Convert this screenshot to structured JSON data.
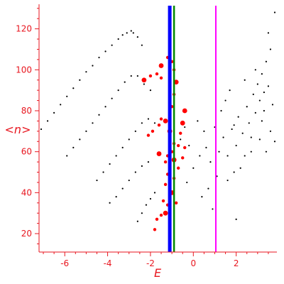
{
  "chart_data": {
    "type": "scatter",
    "xlabel": "E",
    "ylabel": "<n>",
    "xlim": [
      -7.2,
      3.9
    ],
    "ylim": [
      11,
      132
    ],
    "xticks": [
      -6,
      -4,
      -2,
      0,
      2
    ],
    "yticks": [
      20,
      40,
      60,
      80,
      100,
      120
    ],
    "grid": false,
    "legend": "none",
    "colors": {
      "axis": "#e8161f",
      "black_points": "#000000",
      "red_points": "#ff0000",
      "line_blue": "#0000ff",
      "line_green": "#008800",
      "line_magenta": "#ff00ff"
    },
    "vertical_lines": [
      {
        "x": -1.1,
        "color": "#0000ff"
      },
      {
        "x": -0.9,
        "color": "#008800"
      },
      {
        "x": 1.05,
        "color": "#ff00ff"
      }
    ],
    "series": [
      {
        "points": [
          [
            -7.1,
            71
          ],
          [
            -6.8,
            75
          ],
          [
            -6.5,
            79
          ],
          [
            -6.2,
            83
          ],
          [
            -5.9,
            87
          ],
          [
            -5.6,
            91
          ],
          [
            -5.3,
            95
          ],
          [
            -5.0,
            99
          ],
          [
            -4.7,
            102
          ],
          [
            -4.4,
            106
          ],
          [
            -4.1,
            109
          ],
          [
            -3.8,
            112
          ],
          [
            -3.5,
            115
          ],
          [
            -3.3,
            117
          ],
          [
            -3.1,
            118
          ],
          [
            -2.9,
            119
          ],
          [
            -2.8,
            118
          ],
          [
            -2.6,
            116
          ],
          [
            -2.4,
            112
          ],
          [
            -5.9,
            58
          ],
          [
            -5.6,
            62
          ],
          [
            -5.3,
            66
          ],
          [
            -5.0,
            70
          ],
          [
            -4.7,
            74
          ],
          [
            -4.4,
            78
          ],
          [
            -4.1,
            82
          ],
          [
            -3.8,
            86
          ],
          [
            -3.5,
            90
          ],
          [
            -3.2,
            94
          ],
          [
            -2.9,
            97
          ],
          [
            -2.6,
            97
          ],
          [
            -2.3,
            93
          ],
          [
            -2.0,
            90
          ],
          [
            -4.5,
            46
          ],
          [
            -4.2,
            50
          ],
          [
            -3.9,
            54
          ],
          [
            -3.6,
            58
          ],
          [
            -3.3,
            62
          ],
          [
            -3.0,
            66
          ],
          [
            -2.7,
            70
          ],
          [
            -2.4,
            74
          ],
          [
            -2.1,
            76
          ],
          [
            -1.8,
            74
          ],
          [
            -3.9,
            35
          ],
          [
            -3.6,
            38
          ],
          [
            -3.3,
            42
          ],
          [
            -3.0,
            46
          ],
          [
            -2.7,
            50
          ],
          [
            -2.4,
            53
          ],
          [
            -2.1,
            55
          ],
          [
            -2.6,
            26
          ],
          [
            -2.4,
            30
          ],
          [
            -2.2,
            34
          ],
          [
            -2.0,
            37
          ],
          [
            -1.8,
            40
          ],
          [
            -0.6,
            66
          ],
          [
            -0.2,
            63
          ],
          [
            0.3,
            58
          ],
          [
            0.6,
            62
          ],
          [
            0.8,
            55
          ],
          [
            1.2,
            60
          ],
          [
            1.4,
            67
          ],
          [
            1.6,
            58
          ],
          [
            1.8,
            71
          ],
          [
            2.0,
            63
          ],
          [
            2.1,
            77
          ],
          [
            2.3,
            69
          ],
          [
            2.5,
            82
          ],
          [
            2.6,
            74
          ],
          [
            2.8,
            88
          ],
          [
            2.9,
            79
          ],
          [
            3.0,
            93
          ],
          [
            3.1,
            85
          ],
          [
            3.2,
            98
          ],
          [
            3.3,
            89
          ],
          [
            3.4,
            104
          ],
          [
            3.5,
            92
          ],
          [
            3.6,
            110
          ],
          [
            3.7,
            83
          ],
          [
            3.8,
            128
          ],
          [
            3.5,
            118
          ],
          [
            3.2,
            75
          ],
          [
            2.7,
            60
          ],
          [
            2.2,
            52
          ],
          [
            1.9,
            50
          ],
          [
            1.1,
            48
          ],
          [
            0.7,
            42
          ],
          [
            0.4,
            38
          ],
          [
            0.9,
            32
          ],
          [
            2.0,
            27
          ],
          [
            -0.3,
            45
          ],
          [
            0.0,
            52
          ],
          [
            0.5,
            70
          ],
          [
            1.0,
            72
          ],
          [
            1.3,
            80
          ],
          [
            1.5,
            85
          ],
          [
            1.7,
            90
          ],
          [
            2.4,
            95
          ],
          [
            2.9,
            100
          ],
          [
            3.3,
            80
          ],
          [
            3.6,
            70
          ],
          [
            3.8,
            65
          ],
          [
            3.1,
            66
          ],
          [
            2.4,
            58
          ],
          [
            1.6,
            46
          ],
          [
            0.2,
            75
          ],
          [
            -0.4,
            72
          ],
          [
            1.9,
            73
          ],
          [
            2.7,
            67
          ],
          [
            3.4,
            60
          ]
        ]
      },
      {
        "points": [
          [
            -1.5,
            102
          ],
          [
            -1.2,
            106
          ],
          [
            -1.0,
            104
          ],
          [
            -0.9,
            100
          ],
          [
            -0.8,
            94
          ],
          [
            -0.9,
            88
          ],
          [
            -1.0,
            82
          ],
          [
            -1.1,
            78
          ],
          [
            -1.3,
            75
          ],
          [
            -1.6,
            73
          ],
          [
            -1.9,
            70
          ],
          [
            -2.1,
            68
          ],
          [
            -2.3,
            95
          ],
          [
            -2.0,
            97
          ],
          [
            -1.7,
            98
          ],
          [
            -1.5,
            96
          ],
          [
            -1.1,
            70
          ],
          [
            -0.9,
            64
          ],
          [
            -1.2,
            58
          ],
          [
            -1.3,
            55
          ],
          [
            -0.9,
            56
          ],
          [
            -1.0,
            60
          ],
          [
            -1.2,
            49
          ],
          [
            -1.3,
            44
          ],
          [
            -1.0,
            40
          ],
          [
            -0.9,
            47
          ],
          [
            -0.7,
            63
          ],
          [
            -0.6,
            69
          ],
          [
            -0.5,
            74
          ],
          [
            -0.4,
            62
          ],
          [
            -1.4,
            36
          ],
          [
            -1.2,
            34
          ],
          [
            -1.3,
            30
          ],
          [
            -1.5,
            29
          ],
          [
            -1.7,
            27
          ],
          [
            -1.8,
            22
          ],
          [
            -1.6,
            59
          ],
          [
            -1.5,
            76
          ],
          [
            -0.8,
            35
          ],
          [
            -0.7,
            52
          ],
          [
            -0.4,
            80
          ],
          [
            -0.5,
            57
          ]
        ]
      }
    ]
  }
}
